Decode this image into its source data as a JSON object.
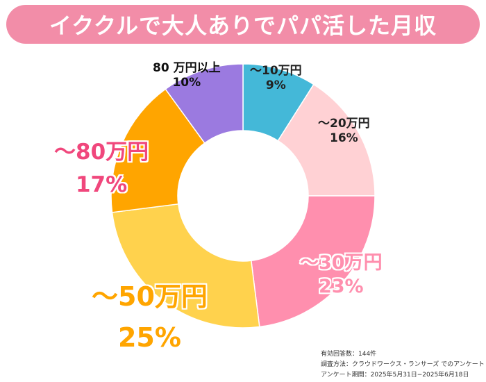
{
  "title": "イククルで大人ありでパパ活した月収",
  "chart_data": {
    "type": "pie",
    "title": "イククルで大人ありでパパ活した月収",
    "donut": true,
    "slices": [
      {
        "label": "〜10万円",
        "pct_label": "9%",
        "value": 9,
        "color": "#44b8d8"
      },
      {
        "label": "〜20万円",
        "pct_label": "16%",
        "value": 16,
        "color": "#ffd1d4"
      },
      {
        "label": "〜30万円",
        "pct_label": "23%",
        "value": 23,
        "color": "#ff8fae"
      },
      {
        "label": "〜50万円",
        "pct_label": "25%",
        "value": 25,
        "color": "#ffd24d"
      },
      {
        "label": "〜80万円",
        "pct_label": "17%",
        "value": 17,
        "color": "#ffa500"
      },
      {
        "label": "80 万円以上",
        "pct_label": "10%",
        "value": 10,
        "color": "#9b7ae0"
      }
    ]
  },
  "notes": {
    "responses": "有効回答数：144件",
    "method": "調査方法：クラウドワークス・ランサーズ でのアンケート",
    "period": "アンケート期間：2025年5月31日−2025年6月18日"
  }
}
